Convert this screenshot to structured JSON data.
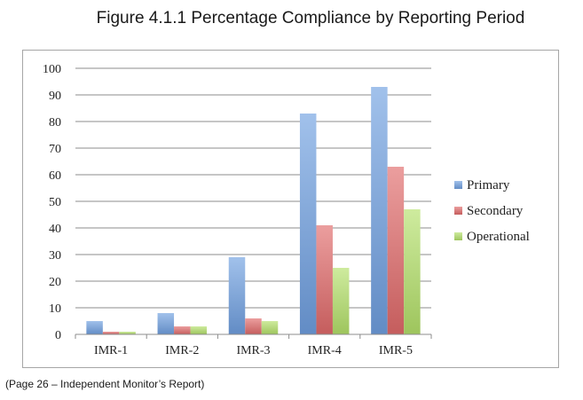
{
  "chart_data": {
    "type": "bar",
    "title": "Figure 4.1.1 Percentage Compliance by Reporting Period",
    "categories": [
      "IMR-1",
      "IMR-2",
      "IMR-3",
      "IMR-4",
      "IMR-5"
    ],
    "series": [
      {
        "name": "Primary",
        "values": [
          5,
          8,
          29,
          83,
          93
        ],
        "color": "#6f9fe0"
      },
      {
        "name": "Secondary",
        "values": [
          1,
          3,
          6,
          41,
          63
        ],
        "color": "#e06a6a"
      },
      {
        "name": "Operational",
        "values": [
          1,
          3,
          5,
          25,
          47
        ],
        "color": "#b4e06a"
      }
    ],
    "ylim": [
      0,
      100
    ],
    "yticks": [
      "0",
      "10",
      "20",
      "30",
      "40",
      "50",
      "60",
      "70",
      "80",
      "90",
      "100"
    ],
    "xlabel": "",
    "ylabel": "",
    "grid": true,
    "legend": "right"
  },
  "caption": "(Page 26 – Independent Monitor’s Report)"
}
